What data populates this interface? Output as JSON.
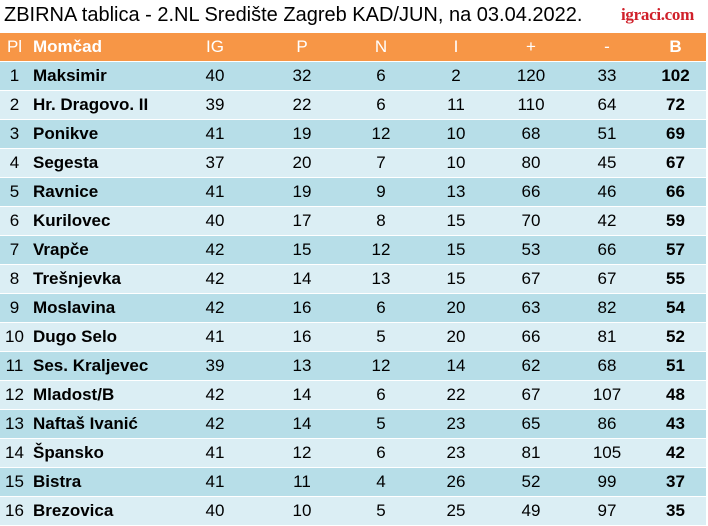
{
  "header": {
    "title": "ZBIRNA tablica - 2.NL Središte Zagreb KAD/JUN, na 03.04.2022.",
    "logo": "igraci.com"
  },
  "columns": [
    "Pl",
    "Momčad",
    "IG",
    "P",
    "N",
    "I",
    "+",
    "-",
    "B"
  ],
  "rows": [
    {
      "pl": "1",
      "team": "Maksimir",
      "ig": "40",
      "p": "32",
      "n": "6",
      "i": "2",
      "plus": "120",
      "minus": "33",
      "b": "102"
    },
    {
      "pl": "2",
      "team": "Hr. Dragovo. II",
      "ig": "39",
      "p": "22",
      "n": "6",
      "i": "11",
      "plus": "110",
      "minus": "64",
      "b": "72"
    },
    {
      "pl": "3",
      "team": "Ponikve",
      "ig": "41",
      "p": "19",
      "n": "12",
      "i": "10",
      "plus": "68",
      "minus": "51",
      "b": "69"
    },
    {
      "pl": "4",
      "team": "Segesta",
      "ig": "37",
      "p": "20",
      "n": "7",
      "i": "10",
      "plus": "80",
      "minus": "45",
      "b": "67"
    },
    {
      "pl": "5",
      "team": "Ravnice",
      "ig": "41",
      "p": "19",
      "n": "9",
      "i": "13",
      "plus": "66",
      "minus": "46",
      "b": "66"
    },
    {
      "pl": "6",
      "team": "Kurilovec",
      "ig": "40",
      "p": "17",
      "n": "8",
      "i": "15",
      "plus": "70",
      "minus": "42",
      "b": "59"
    },
    {
      "pl": "7",
      "team": "Vrapče",
      "ig": "42",
      "p": "15",
      "n": "12",
      "i": "15",
      "plus": "53",
      "minus": "66",
      "b": "57"
    },
    {
      "pl": "8",
      "team": "Trešnjevka",
      "ig": "42",
      "p": "14",
      "n": "13",
      "i": "15",
      "plus": "67",
      "minus": "67",
      "b": "55"
    },
    {
      "pl": "9",
      "team": "Moslavina",
      "ig": "42",
      "p": "16",
      "n": "6",
      "i": "20",
      "plus": "63",
      "minus": "82",
      "b": "54"
    },
    {
      "pl": "10",
      "team": "Dugo Selo",
      "ig": "41",
      "p": "16",
      "n": "5",
      "i": "20",
      "plus": "66",
      "minus": "81",
      "b": "52"
    },
    {
      "pl": "11",
      "team": "Ses. Kraljevec",
      "ig": "39",
      "p": "13",
      "n": "12",
      "i": "14",
      "plus": "62",
      "minus": "68",
      "b": "51"
    },
    {
      "pl": "12",
      "team": "Mladost/B",
      "ig": "42",
      "p": "14",
      "n": "6",
      "i": "22",
      "plus": "67",
      "minus": "107",
      "b": "48"
    },
    {
      "pl": "13",
      "team": "Naftaš Ivanić",
      "ig": "42",
      "p": "14",
      "n": "5",
      "i": "23",
      "plus": "65",
      "minus": "86",
      "b": "43"
    },
    {
      "pl": "14",
      "team": "Špansko",
      "ig": "41",
      "p": "12",
      "n": "6",
      "i": "23",
      "plus": "81",
      "minus": "105",
      "b": "42"
    },
    {
      "pl": "15",
      "team": "Bistra",
      "ig": "41",
      "p": "11",
      "n": "4",
      "i": "26",
      "plus": "52",
      "minus": "99",
      "b": "37"
    },
    {
      "pl": "16",
      "team": "Brezovica",
      "ig": "40",
      "p": "10",
      "n": "5",
      "i": "25",
      "plus": "49",
      "minus": "97",
      "b": "35"
    }
  ],
  "colors": {
    "header_bg": "#f79646",
    "row_odd": "#b7dee8",
    "row_even": "#dbeef4",
    "logo": "#d0202a"
  }
}
